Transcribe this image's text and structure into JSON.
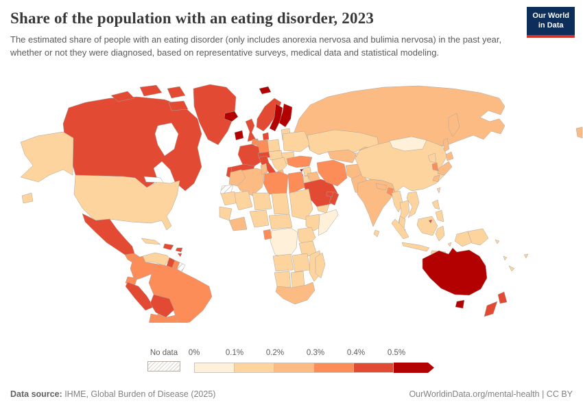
{
  "header": {
    "title": "Share of the population with an eating disorder, 2023",
    "subtitle": "The estimated share of people with an eating disorder (only includes anorexia nervosa and bulimia nervosa) in the past year, whether or not they were diagnosed, based on representative surveys, medical data and statistical modeling."
  },
  "logo": {
    "line1": "Our World",
    "line2": "in Data",
    "bg": "#0d2e5a",
    "accent": "#d0342c"
  },
  "footer": {
    "source_label": "Data source:",
    "source": " IHME, Global Burden of Disease (2025)",
    "url": "OurWorldinData.org/mental-health",
    "license": " | CC BY"
  },
  "chart_data": {
    "type": "heatmap",
    "subtype": "choropleth-world-map",
    "title": "Share of the population with an eating disorder, 2023",
    "unit": "% of population",
    "legend": {
      "position": "bottom",
      "no_data_label": "No data",
      "ticks": [
        "0%",
        "0.1%",
        "0.2%",
        "0.3%",
        "0.4%",
        "0.5%"
      ],
      "bins": [
        {
          "id": "b1",
          "range": "0-0.1%",
          "color": "#fef0d9"
        },
        {
          "id": "b2",
          "range": "0.1-0.2%",
          "color": "#fdd49e"
        },
        {
          "id": "b3",
          "range": "0.2-0.3%",
          "color": "#fdbb84"
        },
        {
          "id": "b4",
          "range": "0.3-0.4%",
          "color": "#fc8d59"
        },
        {
          "id": "b5",
          "range": "0.4-0.5%",
          "color": "#e34a33"
        },
        {
          "id": "b6",
          "range": "0.5%+",
          "color": "#b30000"
        }
      ],
      "no_data_pattern": "diagonal-hatch"
    },
    "regions": [
      {
        "id": "alaska",
        "bin": "b2"
      },
      {
        "id": "canada",
        "bin": "b5"
      },
      {
        "id": "arctic-islands",
        "bin": "b5"
      },
      {
        "id": "greenland",
        "bin": "b5"
      },
      {
        "id": "iceland",
        "bin": "b6"
      },
      {
        "id": "usa",
        "bin": "b2"
      },
      {
        "id": "hawaii",
        "bin": "b2"
      },
      {
        "id": "mexico",
        "bin": "b5"
      },
      {
        "id": "central-america",
        "bin": "b4"
      },
      {
        "id": "costa-rica-panama",
        "bin": "b5"
      },
      {
        "id": "cuba",
        "bin": "b2"
      },
      {
        "id": "hispaniola",
        "bin": "b5"
      },
      {
        "id": "puerto-rico",
        "bin": "b5"
      },
      {
        "id": "trinidad",
        "bin": "b5"
      },
      {
        "id": "venezuela",
        "bin": "b2"
      },
      {
        "id": "colombia",
        "bin": "b4"
      },
      {
        "id": "guyana",
        "bin": "b5"
      },
      {
        "id": "suriname",
        "bin": "b4"
      },
      {
        "id": "french-guiana",
        "bin": "no_data"
      },
      {
        "id": "ecuador",
        "bin": "b4"
      },
      {
        "id": "peru",
        "bin": "b5"
      },
      {
        "id": "bolivia",
        "bin": "b5"
      },
      {
        "id": "brazil",
        "bin": "b4"
      },
      {
        "id": "paraguay",
        "bin": "b4"
      },
      {
        "id": "uruguay",
        "bin": "b4"
      },
      {
        "id": "argentina",
        "bin": "b4"
      },
      {
        "id": "chile",
        "bin": "b4"
      },
      {
        "id": "ireland",
        "bin": "b6"
      },
      {
        "id": "united-kingdom",
        "bin": "b5"
      },
      {
        "id": "norway",
        "bin": "b5"
      },
      {
        "id": "sweden",
        "bin": "b6"
      },
      {
        "id": "finland",
        "bin": "b6"
      },
      {
        "id": "svalbard",
        "bin": "b6"
      },
      {
        "id": "denmark",
        "bin": "b5"
      },
      {
        "id": "baltics",
        "bin": "b2"
      },
      {
        "id": "poland",
        "bin": "b2"
      },
      {
        "id": "germany",
        "bin": "b4"
      },
      {
        "id": "benelux",
        "bin": "b4"
      },
      {
        "id": "france",
        "bin": "b5"
      },
      {
        "id": "spain",
        "bin": "b5"
      },
      {
        "id": "portugal",
        "bin": "b5"
      },
      {
        "id": "italy",
        "bin": "b5"
      },
      {
        "id": "alpine",
        "bin": "b5"
      },
      {
        "id": "czech-hungary",
        "bin": "b2"
      },
      {
        "id": "balkans",
        "bin": "b2"
      },
      {
        "id": "greece",
        "bin": "b3"
      },
      {
        "id": "romania-bulgaria",
        "bin": "b2"
      },
      {
        "id": "ukraine-belarus",
        "bin": "b2"
      },
      {
        "id": "russia",
        "bin": "b3"
      },
      {
        "id": "turkey",
        "bin": "b4"
      },
      {
        "id": "cyprus",
        "bin": "b6"
      },
      {
        "id": "syria",
        "bin": "b2"
      },
      {
        "id": "iraq",
        "bin": "b3"
      },
      {
        "id": "israel-lebanon",
        "bin": "b5"
      },
      {
        "id": "jordan",
        "bin": "b2"
      },
      {
        "id": "saudi-arabia",
        "bin": "b5"
      },
      {
        "id": "yemen",
        "bin": "b2"
      },
      {
        "id": "oman",
        "bin": "b5"
      },
      {
        "id": "uae-qatar",
        "bin": "b5"
      },
      {
        "id": "iran",
        "bin": "b4"
      },
      {
        "id": "afghanistan",
        "bin": "b3"
      },
      {
        "id": "pakistan",
        "bin": "b3"
      },
      {
        "id": "kazakhstan",
        "bin": "b2"
      },
      {
        "id": "uzbek-turkmen",
        "bin": "b3"
      },
      {
        "id": "kyrgyz-tajik",
        "bin": "b2"
      },
      {
        "id": "india",
        "bin": "b3"
      },
      {
        "id": "nepal",
        "bin": "b3"
      },
      {
        "id": "bangladesh",
        "bin": "b4"
      },
      {
        "id": "sri-lanka",
        "bin": "b2"
      },
      {
        "id": "china",
        "bin": "b2"
      },
      {
        "id": "mongolia",
        "bin": "b1"
      },
      {
        "id": "myanmar",
        "bin": "b2"
      },
      {
        "id": "thailand",
        "bin": "b2"
      },
      {
        "id": "vietnam-laos",
        "bin": "b2"
      },
      {
        "id": "malaysia",
        "bin": "b2"
      },
      {
        "id": "singapore",
        "bin": "b5"
      },
      {
        "id": "borneo",
        "bin": "b2"
      },
      {
        "id": "brunei",
        "bin": "b5"
      },
      {
        "id": "indonesia",
        "bin": "b2"
      },
      {
        "id": "philippines",
        "bin": "b2"
      },
      {
        "id": "taiwan",
        "bin": "b2"
      },
      {
        "id": "japan",
        "bin": "b3"
      },
      {
        "id": "south-korea",
        "bin": "b4"
      },
      {
        "id": "north-korea",
        "bin": "b2"
      },
      {
        "id": "papua-new-guinea",
        "bin": "b2"
      },
      {
        "id": "pacific-islands",
        "bin": "b2"
      },
      {
        "id": "morocco",
        "bin": "b3"
      },
      {
        "id": "western-sahara",
        "bin": "no_data"
      },
      {
        "id": "algeria",
        "bin": "b3"
      },
      {
        "id": "tunisia",
        "bin": "b3"
      },
      {
        "id": "libya",
        "bin": "b4"
      },
      {
        "id": "egypt",
        "bin": "b4"
      },
      {
        "id": "mauritania",
        "bin": "b2"
      },
      {
        "id": "mali",
        "bin": "b2"
      },
      {
        "id": "niger",
        "bin": "b2"
      },
      {
        "id": "chad",
        "bin": "b2"
      },
      {
        "id": "sudan",
        "bin": "b2"
      },
      {
        "id": "senegal-guinea",
        "bin": "b2"
      },
      {
        "id": "west-africa-coast",
        "bin": "b3"
      },
      {
        "id": "nigeria",
        "bin": "b2"
      },
      {
        "id": "cameroon-car",
        "bin": "b2"
      },
      {
        "id": "gabon",
        "bin": "b4"
      },
      {
        "id": "ethiopia",
        "bin": "b2"
      },
      {
        "id": "somalia",
        "bin": "b1"
      },
      {
        "id": "dr-congo",
        "bin": "b1"
      },
      {
        "id": "uganda-kenya",
        "bin": "b2"
      },
      {
        "id": "tanzania",
        "bin": "b2"
      },
      {
        "id": "angola",
        "bin": "b2"
      },
      {
        "id": "zambia-zimbabwe",
        "bin": "b2"
      },
      {
        "id": "mozambique",
        "bin": "b2"
      },
      {
        "id": "namibia",
        "bin": "b2"
      },
      {
        "id": "botswana",
        "bin": "b2"
      },
      {
        "id": "south-africa",
        "bin": "b3"
      },
      {
        "id": "madagascar",
        "bin": "b2"
      },
      {
        "id": "australia",
        "bin": "b6"
      },
      {
        "id": "tasmania",
        "bin": "b6"
      },
      {
        "id": "new-zealand",
        "bin": "b5"
      }
    ]
  }
}
